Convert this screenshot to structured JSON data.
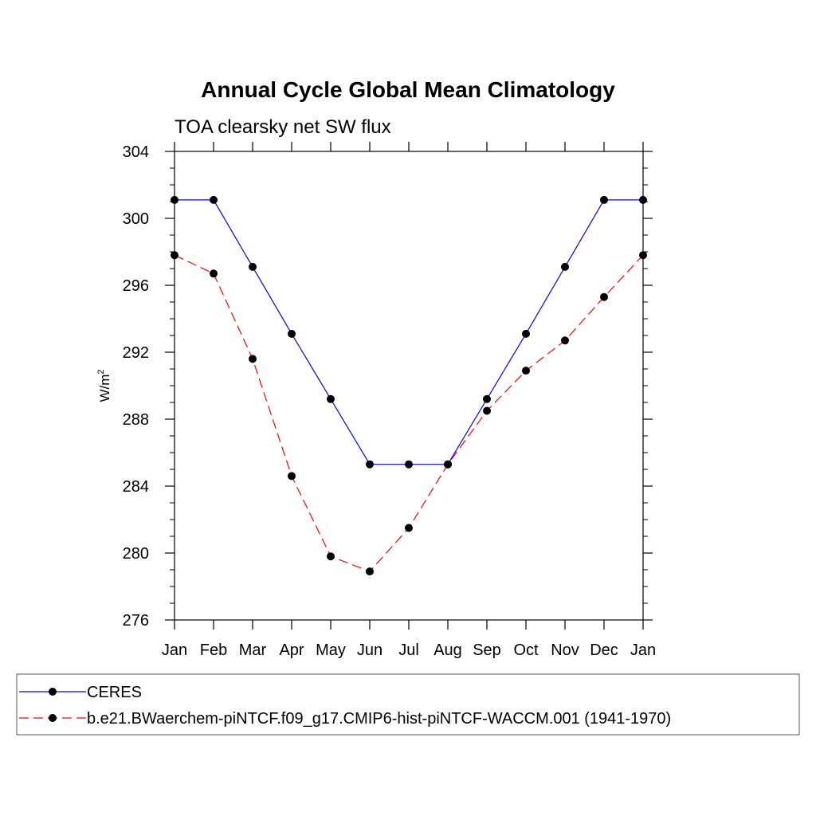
{
  "chart_data": {
    "type": "line",
    "title": "Annual Cycle Global Mean Climatology",
    "subtitle": "TOA clearsky net SW flux",
    "ylabel": "W/m",
    "ylabel_sup": "2",
    "ylim": [
      276,
      304
    ],
    "yticks": [
      "276",
      "280",
      "284",
      "288",
      "292",
      "296",
      "300",
      "304"
    ],
    "categories": [
      "Jan",
      "Feb",
      "Mar",
      "Apr",
      "May",
      "Jun",
      "Jul",
      "Aug",
      "Sep",
      "Oct",
      "Nov",
      "Dec",
      "Jan"
    ],
    "series": [
      {
        "name": "CERES",
        "color": "#0000ff",
        "dash": "solid",
        "values": [
          301.1,
          301.1,
          297.1,
          293.1,
          289.2,
          285.3,
          285.3,
          285.3,
          289.2,
          293.1,
          297.1,
          301.1,
          301.1
        ]
      },
      {
        "name": "b.e21.BWaerchem-piNTCF.f09_g17.CMIP6-hist-piNTCF-WACCM.001 (1941-1970)",
        "color": "#ff0000",
        "dash": "dashed",
        "values": [
          297.8,
          296.7,
          291.6,
          284.6,
          279.8,
          278.9,
          281.5,
          285.3,
          288.5,
          290.9,
          292.7,
          295.3,
          297.8
        ]
      }
    ],
    "grid": false,
    "legend": "bottom"
  }
}
